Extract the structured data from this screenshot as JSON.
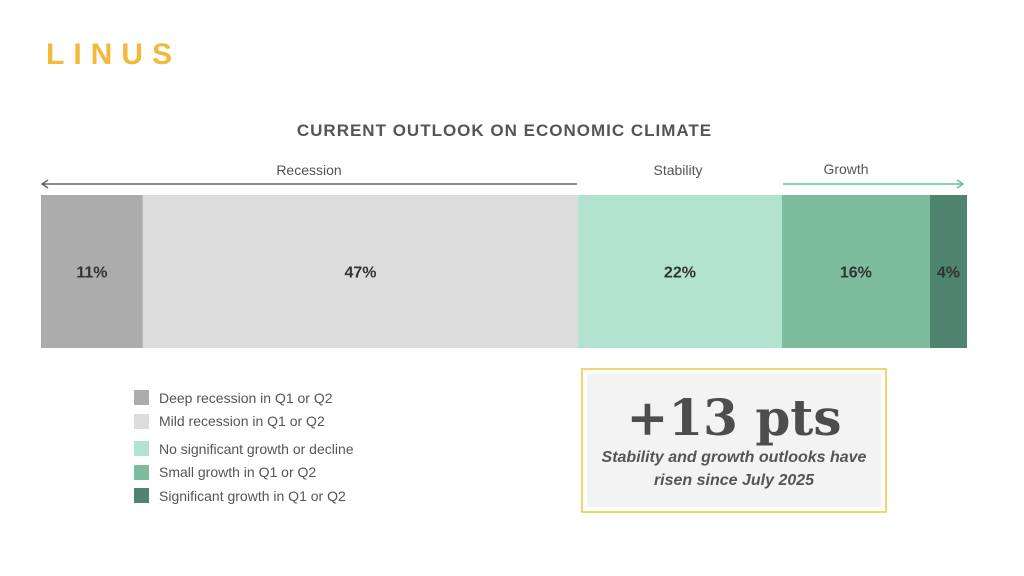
{
  "brand": {
    "logo_text": "LINUS"
  },
  "chart_data": {
    "type": "bar",
    "orientation": "horizontal-stacked-100",
    "title": "CURRENT OUTLOOK ON ECONOMIC CLIMATE",
    "groups": [
      {
        "name": "Recession",
        "arrow": "left"
      },
      {
        "name": "Stability",
        "arrow": "none"
      },
      {
        "name": "Growth",
        "arrow": "right"
      }
    ],
    "series": [
      {
        "name": "Deep recession in Q1 or Q2",
        "value": 11,
        "label": "11%",
        "color": "#acacac"
      },
      {
        "name": "Mild recession in Q1 or Q2",
        "value": 47,
        "label": "47%",
        "color": "#dcdcdc"
      },
      {
        "name": "No significant growth or decline",
        "value": 22,
        "label": "22%",
        "color": "#b2e3cf"
      },
      {
        "name": "Small growth in Q1 or Q2",
        "value": 16,
        "label": "16%",
        "color": "#7dbd9e"
      },
      {
        "name": "Significant growth in Q1 or Q2",
        "value": 4,
        "label": "4%",
        "color": "#4e8470"
      }
    ],
    "xlim": [
      0,
      100
    ]
  },
  "callout": {
    "headline": "+13 pts",
    "text_line1": "Stability and growth outlooks have",
    "text_line2": "risen since July 2025"
  }
}
